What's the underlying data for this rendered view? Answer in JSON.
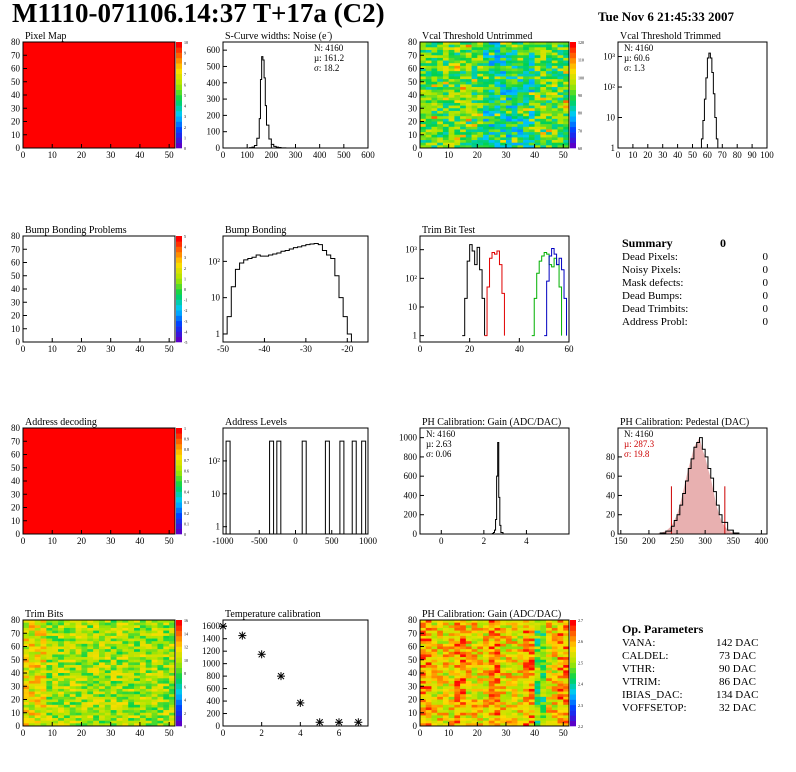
{
  "header": {
    "title": "M1110-071106.14:37 T+17a (C2)",
    "date": "Tue Nov  6 21:45:33 2007"
  },
  "colors": {
    "hist_line": "#000000",
    "trim_red": "#e00000",
    "trim_green": "#00b000",
    "trim_blue": "#0000c0",
    "stat_red": "#cc0000",
    "pedestal_fill": "#e8b0b0",
    "map_red": "#ff0000"
  },
  "chart_data": [
    {
      "id": "pixel-map",
      "type": "heatmap",
      "title": "Pixel Map",
      "fill": "uniform-red",
      "xlim": [
        0,
        52
      ],
      "ylim": [
        0,
        80
      ],
      "xticks": [
        "0",
        "10",
        "20",
        "30",
        "40",
        "50"
      ],
      "yticks": [
        "0",
        "10",
        "20",
        "30",
        "40",
        "50",
        "60",
        "70",
        "80"
      ],
      "palette_ticks": [
        "0",
        "1",
        "2",
        "3",
        "4",
        "5",
        "6",
        "7",
        "8",
        "9",
        "10"
      ]
    },
    {
      "id": "scurve-noise",
      "type": "histogram",
      "title": "S-Curve widths: Noise (e )",
      "title_sup": "-",
      "xlim": [
        0,
        600
      ],
      "ylim": [
        0,
        650
      ],
      "xticks": [
        "0",
        "100",
        "200",
        "300",
        "400",
        "500",
        "600"
      ],
      "yticks": [
        "0",
        "100",
        "200",
        "300",
        "400",
        "500",
        "600"
      ],
      "stats": [
        "N: 4160",
        "µ: 161.2",
        "σ: 18.2"
      ],
      "x": [
        100,
        110,
        120,
        130,
        140,
        150,
        155,
        160,
        165,
        170,
        175,
        180,
        190,
        200,
        210,
        220,
        230,
        240,
        250,
        260
      ],
      "values": [
        0,
        2,
        5,
        15,
        60,
        180,
        420,
        560,
        540,
        430,
        260,
        140,
        55,
        22,
        10,
        5,
        3,
        1,
        1,
        0
      ]
    },
    {
      "id": "vcal-untrimmed",
      "type": "heatmap",
      "title": "Vcal Threshold Untrimmed",
      "fill": "noise-map",
      "xlim": [
        0,
        52
      ],
      "ylim": [
        0,
        80
      ],
      "xticks": [
        "0",
        "10",
        "20",
        "30",
        "40",
        "50"
      ],
      "yticks": [
        "0",
        "10",
        "20",
        "30",
        "40",
        "50",
        "60",
        "70",
        "80"
      ],
      "palette_ticks": [
        "60",
        "70",
        "80",
        "90",
        "100",
        "110",
        "120"
      ]
    },
    {
      "id": "vcal-trimmed",
      "type": "histogram",
      "title": "Vcal Threshold Trimmed",
      "log_y": true,
      "xlim": [
        0,
        100
      ],
      "ylim": [
        1,
        3000
      ],
      "xticks": [
        "0",
        "10",
        "20",
        "30",
        "40",
        "50",
        "60",
        "70",
        "80",
        "90",
        "100"
      ],
      "yticks": [
        "1",
        "10",
        "10²",
        "10³"
      ],
      "stats": [
        "N: 4160",
        "µ: 60.6",
        "σ:  1.3"
      ],
      "x": [
        55,
        56,
        57,
        58,
        59,
        60,
        61,
        62,
        63,
        64,
        65,
        66,
        67
      ],
      "values": [
        1,
        2,
        8,
        40,
        200,
        900,
        1300,
        900,
        300,
        60,
        10,
        2,
        1
      ]
    },
    {
      "id": "bump-bonding-problems",
      "type": "heatmap",
      "title": "Bump Bonding Problems",
      "fill": "empty",
      "xlim": [
        0,
        52
      ],
      "ylim": [
        0,
        80
      ],
      "xticks": [
        "0",
        "10",
        "20",
        "30",
        "40",
        "50"
      ],
      "yticks": [
        "0",
        "10",
        "20",
        "30",
        "40",
        "50",
        "60",
        "70",
        "80"
      ],
      "palette_ticks": [
        "-5",
        "-4",
        "-3",
        "-2",
        "-1",
        "0",
        "1",
        "2",
        "3",
        "4",
        "5"
      ]
    },
    {
      "id": "bump-bonding",
      "type": "histogram",
      "title": "Bump Bonding",
      "log_y": true,
      "xlim": [
        -50,
        -15
      ],
      "ylim": [
        0.6,
        500
      ],
      "xticks": [
        "-50",
        "-40",
        "-30",
        "-20"
      ],
      "yticks": [
        "1",
        "10",
        "10²"
      ],
      "x": [
        -50,
        -49,
        -48,
        -47,
        -46,
        -45,
        -44,
        -43,
        -42,
        -41,
        -40,
        -39,
        -38,
        -37,
        -36,
        -35,
        -34,
        -33,
        -32,
        -31,
        -30,
        -29,
        -28,
        -27,
        -26,
        -25,
        -24,
        -23,
        -22,
        -21,
        -20,
        -19,
        -18
      ],
      "values": [
        1,
        3,
        20,
        60,
        90,
        110,
        120,
        130,
        150,
        140,
        140,
        150,
        160,
        170,
        190,
        200,
        220,
        240,
        250,
        270,
        290,
        300,
        310,
        290,
        200,
        150,
        120,
        40,
        10,
        3,
        1,
        0.5,
        0
      ]
    },
    {
      "id": "trim-bit-test",
      "type": "histogram",
      "title": "Trim Bit Test",
      "log_y": true,
      "xlim": [
        0,
        60
      ],
      "ylim": [
        0.6,
        3000
      ],
      "xticks": [
        "0",
        "20",
        "40",
        "60"
      ],
      "yticks": [
        "1",
        "10",
        "10²",
        "10³"
      ],
      "series": [
        {
          "color": "#000000",
          "x": [
            17,
            18,
            19,
            20,
            21,
            22,
            23,
            24,
            25,
            26
          ],
          "values": [
            1,
            20,
            400,
            1500,
            900,
            300,
            1200,
            200,
            20,
            1
          ]
        },
        {
          "color": "#e00000",
          "x": [
            26,
            27,
            28,
            29,
            30,
            31,
            32,
            33,
            34
          ],
          "values": [
            1,
            50,
            500,
            800,
            700,
            900,
            300,
            30,
            1
          ]
        },
        {
          "color": "#00b000",
          "x": [
            45,
            46,
            47,
            48,
            49,
            50,
            51,
            52,
            53,
            54,
            55,
            56,
            57
          ],
          "values": [
            1,
            20,
            150,
            400,
            600,
            800,
            700,
            300,
            250,
            500,
            300,
            50,
            1
          ]
        },
        {
          "color": "#0000c0",
          "x": [
            50,
            51,
            52,
            53,
            54,
            55,
            56,
            57,
            58,
            59
          ],
          "values": [
            1,
            80,
            600,
            1100,
            700,
            300,
            500,
            200,
            20,
            1
          ]
        }
      ]
    },
    {
      "id": "summary",
      "type": "table",
      "title": "Summary",
      "title_value": "0",
      "rows": [
        {
          "label": "Dead Pixels:",
          "value": "0"
        },
        {
          "label": "Noisy Pixels:",
          "value": "0"
        },
        {
          "label": "Mask defects:",
          "value": "0"
        },
        {
          "label": "Dead Bumps:",
          "value": "0"
        },
        {
          "label": "Dead Trimbits:",
          "value": "0"
        },
        {
          "label": "Address Probl:",
          "value": "0"
        }
      ]
    },
    {
      "id": "address-decoding",
      "type": "heatmap",
      "title": "Address decoding",
      "fill": "uniform-red",
      "xlim": [
        0,
        52
      ],
      "ylim": [
        0,
        80
      ],
      "xticks": [
        "0",
        "10",
        "20",
        "30",
        "40",
        "50"
      ],
      "yticks": [
        "0",
        "10",
        "20",
        "30",
        "40",
        "50",
        "60",
        "70",
        "80"
      ],
      "palette_ticks": [
        "0",
        "0.1",
        "0.2",
        "0.3",
        "0.4",
        "0.5",
        "0.6",
        "0.7",
        "0.8",
        "0.9",
        "1"
      ]
    },
    {
      "id": "address-levels",
      "type": "histogram",
      "title": "Address Levels",
      "log_y": true,
      "xlim": [
        -1000,
        1000
      ],
      "ylim": [
        0.6,
        1000
      ],
      "xticks": [
        "-1000",
        "-500",
        "0",
        "500",
        "1000"
      ],
      "yticks": [
        "1",
        "10",
        "10²"
      ],
      "peaks": [
        -930,
        -330,
        -230,
        120,
        440,
        640,
        810,
        940
      ],
      "peak_value": 400
    },
    {
      "id": "ph-gain",
      "type": "histogram",
      "title": "PH Calibration: Gain (ADC/DAC)",
      "xlim": [
        -1,
        6
      ],
      "ylim": [
        0,
        1100
      ],
      "xticks": [
        "0",
        "2",
        "4"
      ],
      "yticks": [
        "0",
        "200",
        "400",
        "600",
        "800",
        "1000"
      ],
      "stats": [
        "N: 4160",
        "µ: 2.63",
        "σ: 0.06"
      ],
      "x": [
        2.3,
        2.4,
        2.45,
        2.5,
        2.55,
        2.6,
        2.65,
        2.7,
        2.75,
        2.8,
        2.9
      ],
      "values": [
        0,
        5,
        15,
        40,
        150,
        600,
        950,
        380,
        90,
        15,
        0
      ]
    },
    {
      "id": "ph-pedestal",
      "type": "histogram",
      "title": "PH Calibration: Pedestal (DAC)",
      "xlim": [
        145,
        410
      ],
      "ylim": [
        0,
        110
      ],
      "xticks": [
        "150",
        "200",
        "250",
        "300",
        "350",
        "400"
      ],
      "yticks": [
        "0",
        "20",
        "40",
        "60",
        "80"
      ],
      "stats": [
        "N: 4160",
        "µ: 287.3",
        "σ: 19.8"
      ],
      "cut_lines": [
        240,
        335
      ],
      "x": [
        210,
        220,
        230,
        240,
        245,
        250,
        255,
        260,
        265,
        270,
        275,
        280,
        285,
        290,
        295,
        300,
        305,
        310,
        315,
        320,
        325,
        330,
        340,
        350,
        360
      ],
      "values": [
        0,
        1,
        3,
        8,
        14,
        20,
        30,
        42,
        55,
        68,
        78,
        90,
        95,
        100,
        88,
        80,
        68,
        58,
        44,
        30,
        20,
        12,
        4,
        1,
        0
      ]
    },
    {
      "id": "trim-bits",
      "type": "heatmap",
      "title": "Trim Bits",
      "fill": "trim-map",
      "xlim": [
        0,
        52
      ],
      "ylim": [
        0,
        80
      ],
      "xticks": [
        "0",
        "10",
        "20",
        "30",
        "40",
        "50"
      ],
      "yticks": [
        "0",
        "10",
        "20",
        "30",
        "40",
        "50",
        "60",
        "70",
        "80"
      ],
      "palette_ticks": [
        "0",
        "2",
        "4",
        "6",
        "8",
        "10",
        "12",
        "14",
        "16"
      ]
    },
    {
      "id": "temperature-calibration",
      "type": "scatter",
      "title": "Temperature calibration",
      "xlim": [
        0,
        7.5
      ],
      "ylim": [
        0,
        1700
      ],
      "xticks": [
        "0",
        "2",
        "4",
        "6"
      ],
      "yticks": [
        "0",
        "200",
        "400",
        "600",
        "800",
        "1000",
        "1200",
        "1400",
        "1600"
      ],
      "x": [
        0,
        1,
        2,
        3,
        4,
        5,
        6,
        7
      ],
      "values": [
        1600,
        1450,
        1150,
        800,
        370,
        60,
        60,
        60
      ]
    },
    {
      "id": "ph-gain-map",
      "type": "heatmap",
      "title": "PH Calibration: Gain (ADC/DAC)",
      "fill": "gain-map",
      "xlim": [
        0,
        52
      ],
      "ylim": [
        0,
        80
      ],
      "xticks": [
        "0",
        "10",
        "20",
        "30",
        "40",
        "50"
      ],
      "yticks": [
        "0",
        "10",
        "20",
        "30",
        "40",
        "50",
        "60",
        "70",
        "80"
      ],
      "palette_ticks": [
        "2.2",
        "2.3",
        "2.4",
        "2.5",
        "2.6",
        "2.7"
      ]
    },
    {
      "id": "op-parameters",
      "type": "table",
      "title": "Op. Parameters",
      "rows": [
        {
          "label": "VANA:",
          "value": "142 DAC"
        },
        {
          "label": "CALDEL:",
          "value": "73 DAC"
        },
        {
          "label": "VTHR:",
          "value": "90 DAC"
        },
        {
          "label": "VTRIM:",
          "value": "86 DAC"
        },
        {
          "label": "IBIAS_DAC:",
          "value": "134 DAC"
        },
        {
          "label": "VOFFSETOP:",
          "value": "32 DAC"
        }
      ]
    }
  ]
}
